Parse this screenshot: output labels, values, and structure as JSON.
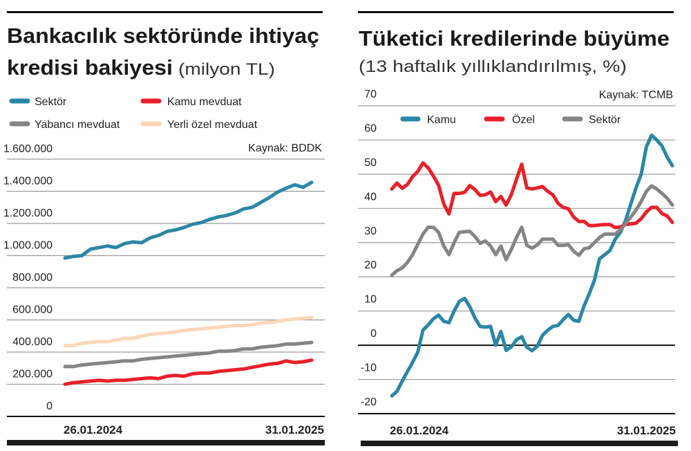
{
  "chart_data": [
    {
      "type": "line",
      "title": "Bankacılık sektöründe ihtiyaç kredisi bakiyesi",
      "subtitle": "(milyon TL)",
      "source": "Kaynak: BDDK",
      "ylim": [
        0,
        1600000
      ],
      "yticks": [
        "0",
        "200.000",
        "400.000",
        "600.000",
        "800.000",
        "1.000.000",
        "1.200.000",
        "1.400.000",
        "1.600.000"
      ],
      "ytick_values": [
        0,
        200000,
        400000,
        600000,
        800000,
        1000000,
        1200000,
        1400000,
        1600000
      ],
      "x_start": "26.01.2024",
      "x_end": "31.01.2025",
      "grid": true,
      "legend_placement": "top",
      "series": [
        {
          "name": "Sektör",
          "color": "#2b86a6",
          "values": [
            985000,
            995000,
            1000000,
            1040000,
            1050000,
            1060000,
            1050000,
            1075000,
            1085000,
            1080000,
            1110000,
            1125000,
            1150000,
            1160000,
            1175000,
            1195000,
            1205000,
            1225000,
            1240000,
            1250000,
            1265000,
            1290000,
            1300000,
            1330000,
            1360000,
            1395000,
            1420000,
            1440000,
            1425000,
            1455000
          ]
        },
        {
          "name": "Kamu mevduat",
          "color": "#e8202a",
          "values": [
            200000,
            210000,
            215000,
            220000,
            225000,
            220000,
            225000,
            225000,
            230000,
            235000,
            240000,
            235000,
            250000,
            255000,
            250000,
            265000,
            270000,
            270000,
            280000,
            285000,
            290000,
            295000,
            305000,
            315000,
            325000,
            330000,
            345000,
            335000,
            340000,
            350000
          ]
        },
        {
          "name": "Yabancı mevduat",
          "color": "#858585",
          "values": [
            310000,
            310000,
            320000,
            325000,
            330000,
            335000,
            340000,
            345000,
            345000,
            355000,
            360000,
            365000,
            370000,
            375000,
            380000,
            385000,
            390000,
            395000,
            405000,
            405000,
            410000,
            420000,
            420000,
            430000,
            435000,
            440000,
            450000,
            450000,
            455000,
            460000
          ]
        },
        {
          "name": "Yerli özel mevduat",
          "color": "#fbd6b8",
          "values": [
            440000,
            440000,
            455000,
            460000,
            465000,
            465000,
            475000,
            485000,
            485000,
            500000,
            510000,
            515000,
            520000,
            525000,
            535000,
            540000,
            545000,
            550000,
            555000,
            560000,
            565000,
            565000,
            570000,
            580000,
            585000,
            590000,
            600000,
            605000,
            610000,
            615000
          ]
        }
      ]
    },
    {
      "type": "line",
      "title": "Tüketici kredilerinde büyüme",
      "subtitle": "(13 haftalık yıllıklandırılmış, %)",
      "source": "Kaynak: TCMB",
      "ylim": [
        -20,
        70
      ],
      "yticks": [
        "-20",
        "-10",
        "0",
        "10",
        "20",
        "30",
        "40",
        "50",
        "60",
        "70"
      ],
      "ytick_values": [
        -20,
        -10,
        0,
        10,
        20,
        30,
        40,
        50,
        60,
        70
      ],
      "x_start": "26.01.2024",
      "x_end": "31.01.2025",
      "frequency": "weekly",
      "grid": true,
      "legend_placement": "top",
      "series": [
        {
          "name": "Kamu",
          "color": "#2b86a6",
          "values": [
            -14.8,
            -13.5,
            -10.5,
            -7.7,
            -5,
            -2,
            4.4,
            5.9,
            7.7,
            8.8,
            7,
            6.6,
            10,
            12.8,
            13.7,
            11.3,
            8,
            5.5,
            5.3,
            5.5,
            0,
            4,
            -1.5,
            -0.5,
            1.6,
            2.5,
            -0.6,
            -1.6,
            -0.3,
            2.9,
            4.4,
            5.5,
            5.8,
            7.5,
            9,
            7.3,
            7,
            11.5,
            15,
            19,
            25.3,
            26.5,
            27.7,
            31,
            33,
            36.5,
            41.3,
            46,
            50,
            58,
            61.4,
            60,
            58.3,
            55,
            52.5
          ]
        },
        {
          "name": "Özel",
          "color": "#e8202a",
          "values": [
            45.7,
            47.4,
            45.9,
            47,
            49.3,
            50.8,
            53.3,
            51.9,
            49.5,
            46.8,
            41.3,
            38.4,
            44.4,
            44.4,
            44.7,
            46.7,
            45.5,
            43.8,
            44,
            44.8,
            42,
            43.5,
            41,
            44,
            48.5,
            52.9,
            46,
            45.7,
            46,
            46.4,
            45,
            44,
            41.5,
            40.3,
            39.9,
            37.5,
            36.2,
            36.2,
            35,
            35,
            35.2,
            35.3,
            35.3,
            34.4,
            34.6,
            35.3,
            35.5,
            35.7,
            37,
            39,
            40.3,
            40.3,
            38.5,
            37.8,
            35.9
          ]
        },
        {
          "name": "Sektör",
          "color": "#858585",
          "values": [
            20.5,
            21.8,
            22.6,
            24.2,
            26.5,
            29.5,
            32.5,
            34.5,
            34.5,
            33,
            29,
            26.5,
            30,
            33,
            33.2,
            33.3,
            31.8,
            29.8,
            30.5,
            29,
            26.5,
            29,
            25,
            28,
            31.5,
            34.5,
            29.2,
            28.4,
            29.3,
            31,
            31,
            31,
            29.2,
            29.2,
            29.4,
            27.5,
            26.3,
            28.2,
            28.5,
            30,
            31.5,
            32.5,
            32.5,
            32.5,
            33.8,
            35.5,
            37.5,
            39.5,
            42,
            45,
            46.6,
            45.7,
            44.4,
            43,
            41
          ]
        }
      ]
    }
  ],
  "left": {
    "title_line1": "Bankacılık sektöründe ihtiyaç",
    "title_line2": "kredisi bakiyesi",
    "unit": "(milyon TL)",
    "source": "Kaynak: BDDK",
    "legend": [
      "Sektör",
      "Kamu mevduat",
      "Yabancı mevduat",
      "Yerli özel mevduat"
    ],
    "x_start": "26.01.2024",
    "x_end": "31.01.2025"
  },
  "right": {
    "title": "Tüketici kredilerinde büyüme",
    "subtitle": "(13 haftalık yıllıklandırılmış, %)",
    "source": "Kaynak: TCMB",
    "legend": [
      "Kamu",
      "Özel",
      "Sektör"
    ],
    "x_start": "26.01.2024",
    "x_end": "31.01.2025"
  }
}
